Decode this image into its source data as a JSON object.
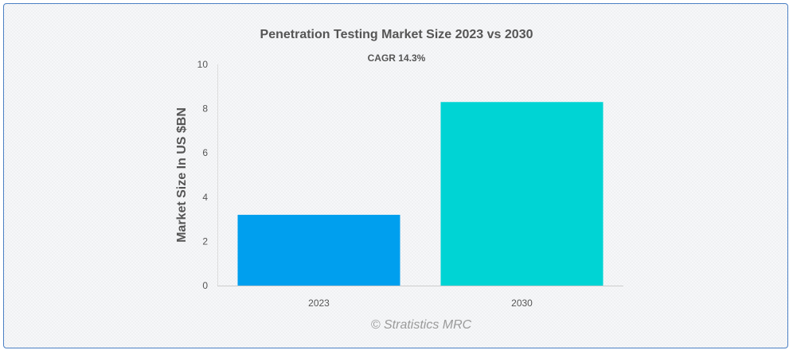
{
  "chart_data": {
    "type": "bar",
    "title": "Penetration Testing Market Size 2023 vs 2030",
    "subtitle": "CAGR 14.3%",
    "xlabel": "",
    "ylabel": "Market Size In US $BN",
    "categories": [
      "2023",
      "2030"
    ],
    "values": [
      3.2,
      8.3
    ],
    "colors": [
      "#009fee",
      "#00d4d4"
    ],
    "ylim": [
      0,
      10
    ],
    "yticks": [
      0,
      2,
      4,
      6,
      8,
      10
    ],
    "grid": false,
    "legend": "none"
  },
  "credit": "© Stratistics MRC"
}
